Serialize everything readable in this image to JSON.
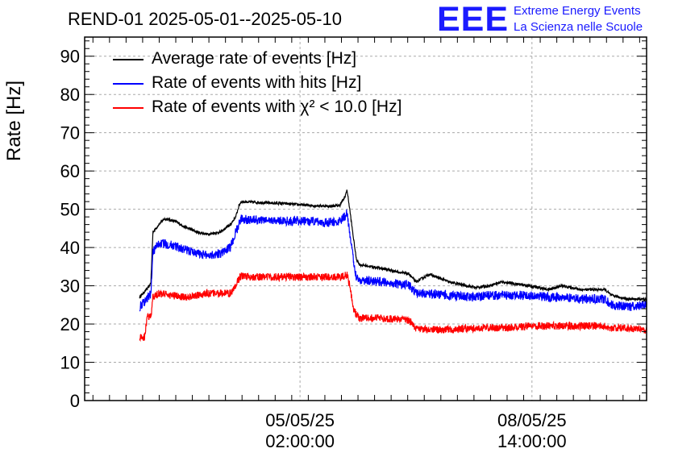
{
  "header": {
    "title": "REND-01 2025-05-01--2025-05-10",
    "logo": "EEE",
    "logo_line1": "Extreme Energy Events",
    "logo_line2": "La Scienza nelle Scuole"
  },
  "chart_data": {
    "type": "line",
    "ylabel": "Rate [Hz]",
    "ylim": [
      0,
      95
    ],
    "yticks": [
      0,
      10,
      20,
      30,
      40,
      50,
      60,
      70,
      80,
      90
    ],
    "grid": true,
    "legend_position": "top-left",
    "x_days_range": [
      0.0,
      8.48
    ],
    "xtick_labels": [
      {
        "x": 3.25,
        "line1": "05/05/25",
        "line2": "02:00:00"
      },
      {
        "x": 6.75,
        "line1": "08/05/25",
        "line2": "14:00:00"
      }
    ],
    "series": [
      {
        "name": "Average rate of events [Hz]",
        "color": "#000000",
        "noise": 0.35,
        "points": [
          [
            0.83,
            27
          ],
          [
            0.98,
            30
          ],
          [
            1.0,
            31
          ],
          [
            1.03,
            44
          ],
          [
            1.12,
            46
          ],
          [
            1.2,
            47.5
          ],
          [
            1.35,
            47
          ],
          [
            1.5,
            45.5
          ],
          [
            1.7,
            44
          ],
          [
            1.85,
            43.5
          ],
          [
            2.05,
            44
          ],
          [
            2.2,
            46
          ],
          [
            2.28,
            48
          ],
          [
            2.33,
            51
          ],
          [
            2.36,
            52
          ],
          [
            2.6,
            51.8
          ],
          [
            3.0,
            51.5
          ],
          [
            3.4,
            51
          ],
          [
            3.7,
            50.8
          ],
          [
            3.85,
            51
          ],
          [
            3.92,
            53
          ],
          [
            3.96,
            55
          ],
          [
            4.0,
            50
          ],
          [
            4.06,
            42
          ],
          [
            4.1,
            37
          ],
          [
            4.15,
            35.5
          ],
          [
            4.5,
            34.5
          ],
          [
            4.9,
            33
          ],
          [
            5.0,
            31
          ],
          [
            5.2,
            33
          ],
          [
            5.5,
            31
          ],
          [
            5.9,
            29.5
          ],
          [
            6.1,
            30
          ],
          [
            6.3,
            31
          ],
          [
            6.7,
            30
          ],
          [
            7.0,
            29
          ],
          [
            7.2,
            30
          ],
          [
            7.5,
            29
          ],
          [
            7.85,
            29
          ],
          [
            7.95,
            27.5
          ],
          [
            8.2,
            26.5
          ],
          [
            8.48,
            26.5
          ]
        ]
      },
      {
        "name": "Rate of events with hits [Hz]",
        "color": "#0000ff",
        "noise": 1.2,
        "points": [
          [
            0.83,
            24.5
          ],
          [
            0.98,
            27.5
          ],
          [
            1.0,
            28
          ],
          [
            1.03,
            39
          ],
          [
            1.12,
            41
          ],
          [
            1.2,
            41
          ],
          [
            1.35,
            40.5
          ],
          [
            1.5,
            39.5
          ],
          [
            1.7,
            38.5
          ],
          [
            1.85,
            38
          ],
          [
            2.05,
            38.5
          ],
          [
            2.2,
            40
          ],
          [
            2.28,
            44
          ],
          [
            2.33,
            46
          ],
          [
            2.36,
            47.5
          ],
          [
            2.6,
            47.2
          ],
          [
            3.0,
            47
          ],
          [
            3.4,
            46.8
          ],
          [
            3.7,
            46.5
          ],
          [
            3.85,
            46.8
          ],
          [
            3.92,
            48
          ],
          [
            3.96,
            49
          ],
          [
            4.0,
            44
          ],
          [
            4.06,
            36
          ],
          [
            4.1,
            32.5
          ],
          [
            4.15,
            31.5
          ],
          [
            4.5,
            31
          ],
          [
            4.9,
            30
          ],
          [
            5.0,
            28
          ],
          [
            5.2,
            28
          ],
          [
            5.5,
            27.5
          ],
          [
            5.9,
            27
          ],
          [
            6.1,
            27.5
          ],
          [
            6.3,
            27.5
          ],
          [
            6.7,
            27.5
          ],
          [
            7.0,
            27
          ],
          [
            7.2,
            27
          ],
          [
            7.5,
            26.5
          ],
          [
            7.85,
            26.5
          ],
          [
            7.95,
            25
          ],
          [
            8.2,
            24.5
          ],
          [
            8.48,
            25
          ]
        ]
      },
      {
        "name": "Rate of events with χ² < 10.0 [Hz]",
        "color": "#ff0000",
        "noise": 1.0,
        "points": [
          [
            0.83,
            16.5
          ],
          [
            0.9,
            16.5
          ],
          [
            0.95,
            22
          ],
          [
            1.0,
            22
          ],
          [
            1.03,
            27
          ],
          [
            1.12,
            28
          ],
          [
            1.3,
            27.5
          ],
          [
            1.5,
            27
          ],
          [
            1.7,
            27.5
          ],
          [
            1.85,
            28
          ],
          [
            2.05,
            28
          ],
          [
            2.2,
            28
          ],
          [
            2.28,
            30
          ],
          [
            2.33,
            32
          ],
          [
            2.36,
            32.5
          ],
          [
            2.6,
            32.3
          ],
          [
            3.0,
            32.3
          ],
          [
            3.4,
            32.3
          ],
          [
            3.7,
            32.3
          ],
          [
            3.85,
            32.3
          ],
          [
            3.92,
            32.5
          ],
          [
            3.96,
            33
          ],
          [
            4.0,
            30
          ],
          [
            4.06,
            24
          ],
          [
            4.1,
            22.5
          ],
          [
            4.15,
            21.5
          ],
          [
            4.5,
            21.5
          ],
          [
            4.9,
            21
          ],
          [
            5.0,
            19
          ],
          [
            5.2,
            18.5
          ],
          [
            5.5,
            18.5
          ],
          [
            5.9,
            19
          ],
          [
            6.1,
            19
          ],
          [
            6.3,
            19
          ],
          [
            6.7,
            19.5
          ],
          [
            7.0,
            19.5
          ],
          [
            7.2,
            19.5
          ],
          [
            7.5,
            19.5
          ],
          [
            7.85,
            19.5
          ],
          [
            7.95,
            19
          ],
          [
            8.2,
            19
          ],
          [
            8.48,
            18.5
          ]
        ]
      }
    ]
  }
}
